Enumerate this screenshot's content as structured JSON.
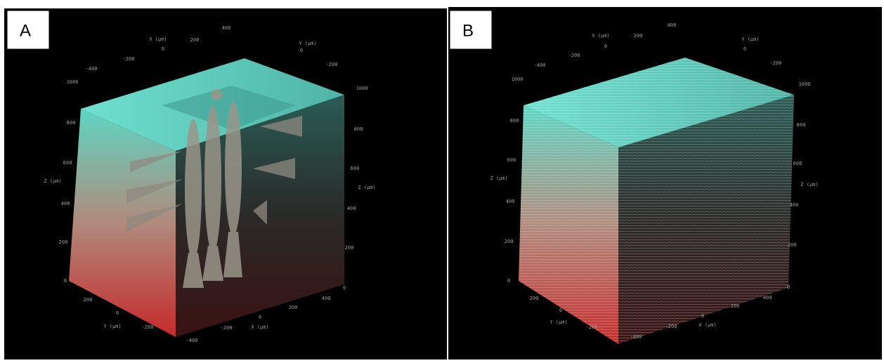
{
  "panels": [
    {
      "label": "A",
      "axis_labels": [
        "X (μm)",
        "200",
        "400",
        "Y (μm)",
        "0",
        "0",
        "-200",
        "-200",
        "-400",
        "1000",
        "1000",
        "800",
        "800",
        "600",
        "600",
        "Z (μm)",
        "Z (μm)",
        "400",
        "400",
        "200",
        "200",
        "0",
        "0",
        "400",
        "200",
        "200",
        "0",
        "0",
        "Y (μm)",
        "X (μm)",
        "-200",
        "-200",
        "-400"
      ]
    },
    {
      "label": "B",
      "axis_labels": [
        "X (μm)",
        "200",
        "400",
        "Y (μm)",
        "0",
        "0",
        "-200",
        "-200",
        "-400",
        "1000",
        "1000",
        "800",
        "800",
        "600",
        "600",
        "Z (μm)",
        "Z (μm)",
        "400",
        "400",
        "200",
        "200",
        "0",
        "0",
        "400",
        "200",
        "200",
        "0",
        "0",
        "Y (μm)",
        "X (μm)",
        "-200",
        "-200",
        "-400"
      ]
    }
  ]
}
